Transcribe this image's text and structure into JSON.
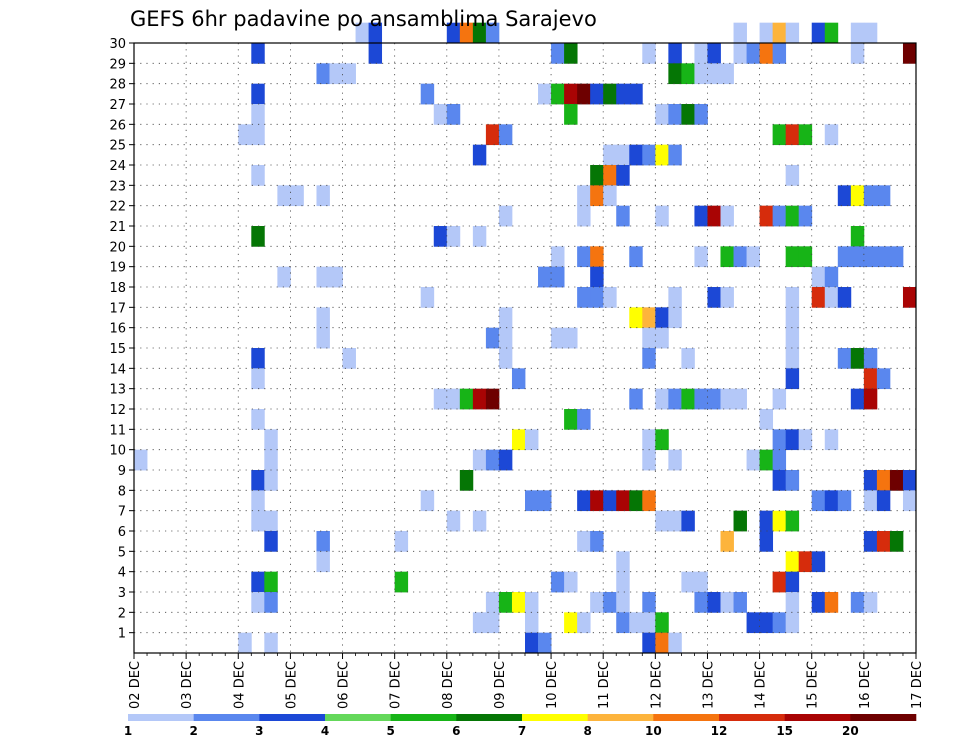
{
  "chart_data": {
    "type": "heatmap",
    "title": "GEFS 6hr padavine po ansamblima Sarajevo",
    "x_ticks": [
      "02 DEC",
      "03 DEC",
      "04 DEC",
      "05 DEC",
      "06 DEC",
      "07 DEC",
      "08 DEC",
      "09 DEC",
      "10 DEC",
      "11 DEC",
      "12 DEC",
      "13 DEC",
      "14 DEC",
      "15 DEC",
      "16 DEC",
      "17 DEC"
    ],
    "y_ticks": [
      1,
      2,
      3,
      4,
      5,
      6,
      7,
      8,
      9,
      10,
      11,
      12,
      13,
      14,
      15,
      16,
      17,
      18,
      19,
      20,
      21,
      22,
      23,
      24,
      25,
      26,
      27,
      28,
      29,
      30
    ],
    "xlim": [
      0,
      60
    ],
    "ylim": [
      0,
      30
    ],
    "grid": true,
    "legend": {
      "placement": "bottom",
      "labels": [
        "1",
        "2",
        "3",
        "4",
        "5",
        "6",
        "7",
        "8",
        "10",
        "12",
        "15",
        "20"
      ],
      "colors": [
        "#b4c8f8",
        "#5a87ee",
        "#1c48d6",
        "#64d85a",
        "#17b417",
        "#057605",
        "#ffff00",
        "#fdb43c",
        "#f5740f",
        "#d62c0c",
        "#a90404",
        "#6e0000"
      ]
    },
    "cells": [
      [
        30,
        17,
        1
      ],
      [
        30,
        18,
        3
      ],
      [
        30,
        24,
        3
      ],
      [
        30,
        25,
        10
      ],
      [
        30,
        26,
        6
      ],
      [
        30,
        27,
        2
      ],
      [
        30,
        46,
        1
      ],
      [
        30,
        48,
        1
      ],
      [
        30,
        49,
        8
      ],
      [
        30,
        50,
        1
      ],
      [
        30,
        52,
        3
      ],
      [
        30,
        53,
        5
      ],
      [
        30,
        55,
        1
      ],
      [
        30,
        56,
        1
      ],
      [
        29,
        9,
        3
      ],
      [
        29,
        18,
        3
      ],
      [
        29,
        32,
        2
      ],
      [
        29,
        33,
        6
      ],
      [
        29,
        39,
        1
      ],
      [
        29,
        41,
        3
      ],
      [
        29,
        43,
        1
      ],
      [
        29,
        44,
        3
      ],
      [
        29,
        46,
        1
      ],
      [
        29,
        47,
        2
      ],
      [
        29,
        48,
        10
      ],
      [
        29,
        49,
        2
      ],
      [
        29,
        55,
        1
      ],
      [
        29,
        59,
        20
      ],
      [
        28,
        14,
        2
      ],
      [
        28,
        15,
        1
      ],
      [
        28,
        16,
        1
      ],
      [
        28,
        41,
        6
      ],
      [
        28,
        42,
        5
      ],
      [
        28,
        43,
        1
      ],
      [
        28,
        44,
        1
      ],
      [
        28,
        45,
        1
      ],
      [
        27,
        9,
        3
      ],
      [
        27,
        22,
        2
      ],
      [
        27,
        31,
        1
      ],
      [
        27,
        32,
        5
      ],
      [
        27,
        33,
        15
      ],
      [
        27,
        34,
        20
      ],
      [
        27,
        35,
        3
      ],
      [
        27,
        36,
        6
      ],
      [
        27,
        37,
        3
      ],
      [
        27,
        38,
        3
      ],
      [
        26,
        9,
        1
      ],
      [
        26,
        23,
        1
      ],
      [
        26,
        24,
        2
      ],
      [
        26,
        33,
        5
      ],
      [
        26,
        40,
        1
      ],
      [
        26,
        41,
        2
      ],
      [
        26,
        42,
        6
      ],
      [
        26,
        43,
        2
      ],
      [
        25,
        8,
        1
      ],
      [
        25,
        9,
        1
      ],
      [
        25,
        27,
        12
      ],
      [
        25,
        28,
        2
      ],
      [
        25,
        49,
        5
      ],
      [
        25,
        50,
        12
      ],
      [
        25,
        51,
        5
      ],
      [
        25,
        53,
        1
      ],
      [
        24,
        26,
        3
      ],
      [
        24,
        36,
        1
      ],
      [
        24,
        37,
        1
      ],
      [
        24,
        38,
        3
      ],
      [
        24,
        39,
        2
      ],
      [
        24,
        40,
        7
      ],
      [
        24,
        41,
        2
      ],
      [
        23,
        9,
        1
      ],
      [
        23,
        35,
        6
      ],
      [
        23,
        36,
        10
      ],
      [
        23,
        37,
        3
      ],
      [
        23,
        50,
        1
      ],
      [
        22,
        11,
        1
      ],
      [
        22,
        12,
        1
      ],
      [
        22,
        14,
        1
      ],
      [
        22,
        34,
        1
      ],
      [
        22,
        35,
        10
      ],
      [
        22,
        36,
        1
      ],
      [
        22,
        54,
        3
      ],
      [
        22,
        55,
        7
      ],
      [
        22,
        56,
        2
      ],
      [
        22,
        57,
        2
      ],
      [
        21,
        28,
        1
      ],
      [
        21,
        34,
        1
      ],
      [
        21,
        37,
        2
      ],
      [
        21,
        40,
        1
      ],
      [
        21,
        43,
        3
      ],
      [
        21,
        44,
        15
      ],
      [
        21,
        45,
        1
      ],
      [
        21,
        48,
        12
      ],
      [
        21,
        49,
        2
      ],
      [
        21,
        50,
        5
      ],
      [
        21,
        51,
        2
      ],
      [
        20,
        9,
        6
      ],
      [
        20,
        23,
        3
      ],
      [
        20,
        24,
        1
      ],
      [
        20,
        26,
        1
      ],
      [
        20,
        55,
        5
      ],
      [
        19,
        32,
        1
      ],
      [
        19,
        34,
        2
      ],
      [
        19,
        35,
        10
      ],
      [
        19,
        38,
        2
      ],
      [
        19,
        43,
        1
      ],
      [
        19,
        45,
        5
      ],
      [
        19,
        46,
        2
      ],
      [
        19,
        47,
        1
      ],
      [
        19,
        50,
        5
      ],
      [
        19,
        51,
        5
      ],
      [
        19,
        54,
        2
      ],
      [
        19,
        55,
        2
      ],
      [
        19,
        56,
        2
      ],
      [
        19,
        57,
        2
      ],
      [
        19,
        58,
        2
      ],
      [
        18,
        11,
        1
      ],
      [
        18,
        14,
        1
      ],
      [
        18,
        15,
        1
      ],
      [
        18,
        31,
        2
      ],
      [
        18,
        32,
        2
      ],
      [
        18,
        35,
        3
      ],
      [
        18,
        52,
        1
      ],
      [
        18,
        53,
        2
      ],
      [
        17,
        22,
        1
      ],
      [
        17,
        34,
        2
      ],
      [
        17,
        35,
        2
      ],
      [
        17,
        36,
        1
      ],
      [
        17,
        41,
        1
      ],
      [
        17,
        44,
        3
      ],
      [
        17,
        45,
        1
      ],
      [
        17,
        50,
        1
      ],
      [
        17,
        52,
        12
      ],
      [
        17,
        53,
        1
      ],
      [
        17,
        54,
        3
      ],
      [
        17,
        59,
        15
      ],
      [
        16,
        14,
        1
      ],
      [
        16,
        28,
        1
      ],
      [
        16,
        38,
        7
      ],
      [
        16,
        39,
        8
      ],
      [
        16,
        40,
        3
      ],
      [
        16,
        41,
        1
      ],
      [
        16,
        50,
        1
      ],
      [
        15,
        14,
        1
      ],
      [
        15,
        27,
        2
      ],
      [
        15,
        28,
        1
      ],
      [
        15,
        32,
        1
      ],
      [
        15,
        33,
        1
      ],
      [
        15,
        39,
        1
      ],
      [
        15,
        40,
        1
      ],
      [
        15,
        50,
        1
      ],
      [
        14,
        9,
        3
      ],
      [
        14,
        16,
        1
      ],
      [
        14,
        28,
        1
      ],
      [
        14,
        39,
        2
      ],
      [
        14,
        42,
        1
      ],
      [
        14,
        50,
        1
      ],
      [
        14,
        54,
        2
      ],
      [
        14,
        55,
        6
      ],
      [
        14,
        56,
        2
      ],
      [
        13,
        9,
        1
      ],
      [
        13,
        29,
        2
      ],
      [
        13,
        50,
        3
      ],
      [
        13,
        56,
        12
      ],
      [
        13,
        57,
        2
      ],
      [
        12,
        23,
        1
      ],
      [
        12,
        24,
        1
      ],
      [
        12,
        25,
        5
      ],
      [
        12,
        26,
        15
      ],
      [
        12,
        27,
        20
      ],
      [
        12,
        38,
        2
      ],
      [
        12,
        40,
        1
      ],
      [
        12,
        41,
        2
      ],
      [
        12,
        42,
        5
      ],
      [
        12,
        43,
        2
      ],
      [
        12,
        44,
        2
      ],
      [
        12,
        45,
        1
      ],
      [
        12,
        46,
        1
      ],
      [
        12,
        49,
        1
      ],
      [
        12,
        55,
        3
      ],
      [
        12,
        56,
        15
      ],
      [
        11,
        9,
        1
      ],
      [
        11,
        33,
        5
      ],
      [
        11,
        34,
        2
      ],
      [
        11,
        48,
        1
      ],
      [
        10,
        10,
        1
      ],
      [
        10,
        29,
        7
      ],
      [
        10,
        30,
        1
      ],
      [
        10,
        39,
        1
      ],
      [
        10,
        40,
        5
      ],
      [
        10,
        49,
        2
      ],
      [
        10,
        50,
        3
      ],
      [
        10,
        51,
        1
      ],
      [
        10,
        53,
        1
      ],
      [
        9,
        0,
        1
      ],
      [
        9,
        10,
        1
      ],
      [
        9,
        26,
        1
      ],
      [
        9,
        27,
        2
      ],
      [
        9,
        28,
        3
      ],
      [
        9,
        39,
        1
      ],
      [
        9,
        41,
        1
      ],
      [
        9,
        47,
        1
      ],
      [
        9,
        48,
        5
      ],
      [
        9,
        49,
        2
      ],
      [
        8,
        9,
        3
      ],
      [
        8,
        10,
        1
      ],
      [
        8,
        25,
        6
      ],
      [
        8,
        49,
        3
      ],
      [
        8,
        50,
        2
      ],
      [
        8,
        56,
        3
      ],
      [
        8,
        57,
        10
      ],
      [
        8,
        58,
        20
      ],
      [
        8,
        59,
        3
      ],
      [
        7,
        9,
        1
      ],
      [
        7,
        22,
        1
      ],
      [
        7,
        30,
        2
      ],
      [
        7,
        31,
        2
      ],
      [
        7,
        34,
        3
      ],
      [
        7,
        35,
        15
      ],
      [
        7,
        36,
        3
      ],
      [
        7,
        37,
        15
      ],
      [
        7,
        38,
        6
      ],
      [
        7,
        39,
        10
      ],
      [
        7,
        52,
        2
      ],
      [
        7,
        53,
        3
      ],
      [
        7,
        54,
        2
      ],
      [
        7,
        56,
        1
      ],
      [
        7,
        57,
        3
      ],
      [
        7,
        59,
        1
      ],
      [
        6,
        9,
        1
      ],
      [
        6,
        10,
        1
      ],
      [
        6,
        24,
        1
      ],
      [
        6,
        26,
        1
      ],
      [
        6,
        40,
        1
      ],
      [
        6,
        41,
        1
      ],
      [
        6,
        42,
        3
      ],
      [
        6,
        46,
        6
      ],
      [
        6,
        48,
        3
      ],
      [
        6,
        49,
        7
      ],
      [
        6,
        50,
        5
      ],
      [
        5,
        10,
        3
      ],
      [
        5,
        14,
        2
      ],
      [
        5,
        20,
        1
      ],
      [
        5,
        34,
        1
      ],
      [
        5,
        35,
        2
      ],
      [
        5,
        45,
        8
      ],
      [
        5,
        48,
        3
      ],
      [
        5,
        56,
        3
      ],
      [
        5,
        57,
        12
      ],
      [
        5,
        58,
        6
      ],
      [
        4,
        14,
        1
      ],
      [
        4,
        37,
        1
      ],
      [
        4,
        50,
        7
      ],
      [
        4,
        51,
        12
      ],
      [
        4,
        52,
        3
      ],
      [
        3,
        9,
        3
      ],
      [
        3,
        10,
        5
      ],
      [
        3,
        20,
        5
      ],
      [
        3,
        32,
        2
      ],
      [
        3,
        33,
        1
      ],
      [
        3,
        37,
        1
      ],
      [
        3,
        42,
        1
      ],
      [
        3,
        43,
        1
      ],
      [
        3,
        49,
        12
      ],
      [
        3,
        50,
        3
      ],
      [
        2,
        9,
        1
      ],
      [
        2,
        10,
        2
      ],
      [
        2,
        27,
        1
      ],
      [
        2,
        28,
        5
      ],
      [
        2,
        29,
        7
      ],
      [
        2,
        30,
        1
      ],
      [
        2,
        35,
        1
      ],
      [
        2,
        36,
        2
      ],
      [
        2,
        37,
        1
      ],
      [
        2,
        39,
        2
      ],
      [
        2,
        43,
        2
      ],
      [
        2,
        44,
        3
      ],
      [
        2,
        45,
        1
      ],
      [
        2,
        46,
        2
      ],
      [
        2,
        50,
        1
      ],
      [
        2,
        52,
        3
      ],
      [
        2,
        53,
        10
      ],
      [
        2,
        55,
        2
      ],
      [
        2,
        56,
        1
      ],
      [
        1,
        26,
        1
      ],
      [
        1,
        27,
        1
      ],
      [
        1,
        30,
        1
      ],
      [
        1,
        33,
        7
      ],
      [
        1,
        34,
        1
      ],
      [
        1,
        37,
        2
      ],
      [
        1,
        38,
        1
      ],
      [
        1,
        39,
        1
      ],
      [
        1,
        40,
        5
      ],
      [
        1,
        47,
        3
      ],
      [
        1,
        48,
        3
      ],
      [
        1,
        49,
        2
      ],
      [
        1,
        50,
        1
      ],
      [
        0,
        8,
        1
      ],
      [
        0,
        10,
        1
      ],
      [
        0,
        30,
        3
      ],
      [
        0,
        31,
        2
      ],
      [
        0,
        39,
        3
      ],
      [
        0,
        40,
        10
      ],
      [
        0,
        41,
        1
      ]
    ]
  }
}
